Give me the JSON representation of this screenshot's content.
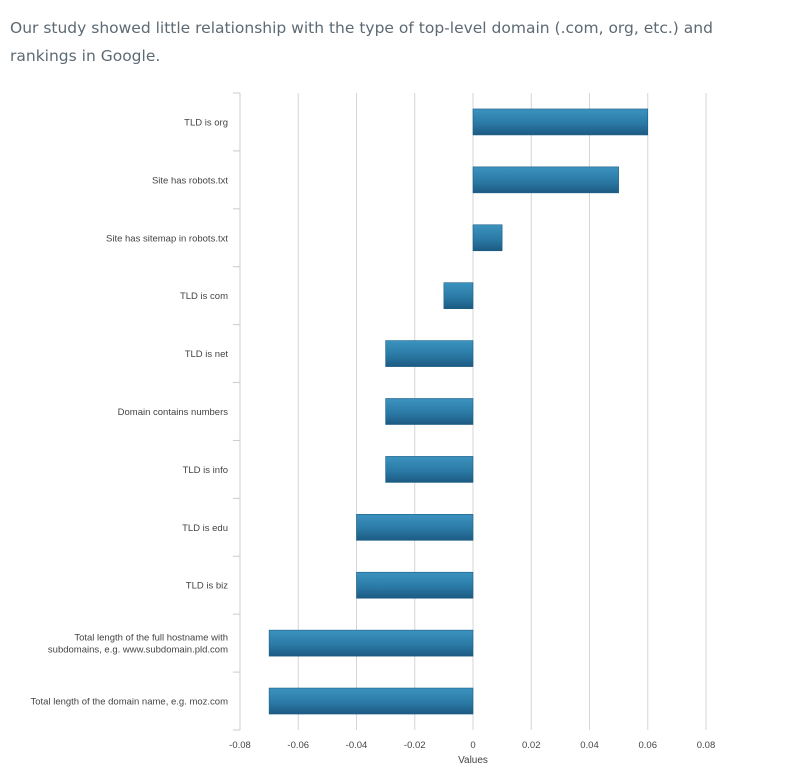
{
  "intro": {
    "text": "Our study showed little relationship with the type of top-level domain (.com, org, etc.) and rankings in Google."
  },
  "chart_data": {
    "type": "bar",
    "orientation": "horizontal",
    "title": "",
    "xlabel": "Values",
    "ylabel": "",
    "xlim": [
      -0.08,
      0.08
    ],
    "x_ticks": [
      "-0.08",
      "-0.06",
      "-0.04",
      "-0.02",
      "0",
      "0.02",
      "0.04",
      "0.06",
      "0.08"
    ],
    "grid": true,
    "categories": [
      [
        "TLD is org"
      ],
      [
        "Site has robots.txt"
      ],
      [
        "Site has sitemap in robots.txt"
      ],
      [
        "TLD is com"
      ],
      [
        "TLD is net"
      ],
      [
        "Domain contains numbers"
      ],
      [
        "TLD is info"
      ],
      [
        "TLD is edu"
      ],
      [
        "TLD is biz"
      ],
      [
        "Total length of the full hostname with",
        "subdomains, e.g. www.subdomain.pld.com"
      ],
      [
        "Total length of the domain name, e.g. moz.com"
      ]
    ],
    "values": [
      0.06,
      0.05,
      0.01,
      -0.01,
      -0.03,
      -0.03,
      -0.03,
      -0.04,
      -0.04,
      -0.07,
      -0.07
    ],
    "bar_color": "#2b7aa6"
  }
}
